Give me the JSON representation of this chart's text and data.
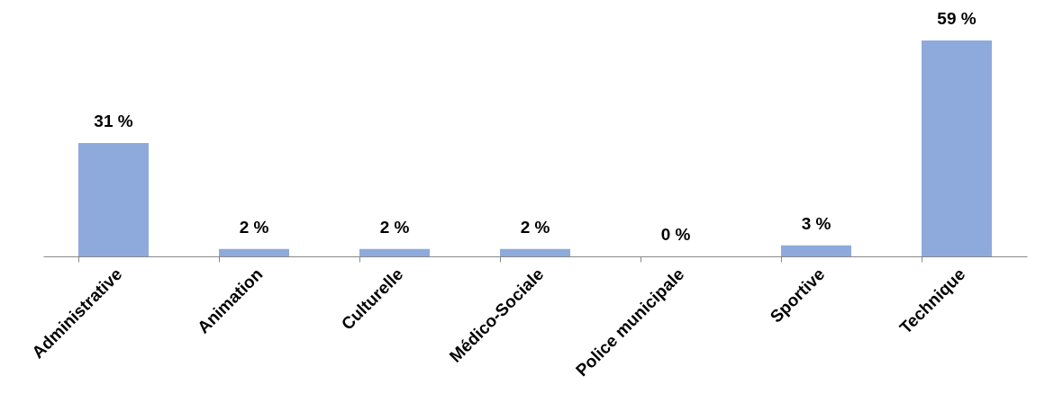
{
  "chart_data": {
    "type": "bar",
    "categories": [
      "Administrative",
      "Animation",
      "Culturelle",
      "Médico-Sociale",
      "Police municipale",
      "Sportive",
      "Technique"
    ],
    "values": [
      31,
      2,
      2,
      2,
      0,
      3,
      59
    ],
    "value_labels": [
      "31 %",
      "2 %",
      "2 %",
      "2 %",
      "0 %",
      "3 %",
      "59 %"
    ],
    "color": "#8eaadc"
  }
}
